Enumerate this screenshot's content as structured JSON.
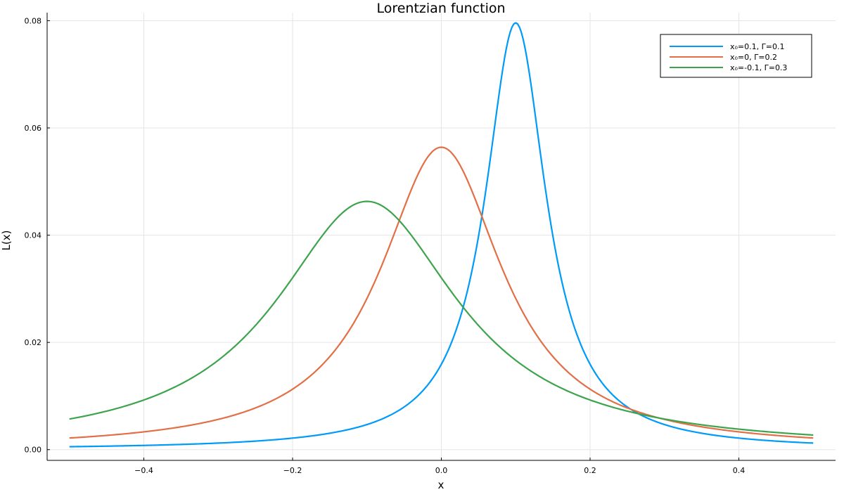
{
  "chart_data": {
    "type": "line",
    "title": "Lorentzian function",
    "xlabel": "x",
    "ylabel": "L(x)",
    "xlim": [
      -0.53,
      0.53
    ],
    "ylim": [
      -0.002,
      0.0815
    ],
    "x_ticks": [
      -0.4,
      -0.2,
      0.0,
      0.2,
      0.4
    ],
    "x_tick_labels": [
      "−0.4",
      "−0.2",
      "0.0",
      "0.2",
      "0.4"
    ],
    "y_ticks": [
      0.0,
      0.02,
      0.04,
      0.06,
      0.08
    ],
    "y_tick_labels": [
      "0.00",
      "0.02",
      "0.04",
      "0.06",
      "0.08"
    ],
    "grid": true,
    "legend_position": "top-right",
    "x_range": [
      -0.5,
      0.5
    ],
    "series": [
      {
        "name": "x₀=0.1, Γ=0.1",
        "x0": 0.1,
        "gamma": 0.1,
        "color": "#009af9",
        "peak_value": 0.0796
      },
      {
        "name": "x₀=0, Γ=0.2",
        "x0": 0.0,
        "gamma": 0.2,
        "color": "#e26f46",
        "peak_value": 0.0564
      },
      {
        "name": "x₀=-0.1, Γ=0.3",
        "x0": -0.1,
        "gamma": 0.3,
        "color": "#3da44d",
        "peak_value": 0.0463
      }
    ]
  }
}
